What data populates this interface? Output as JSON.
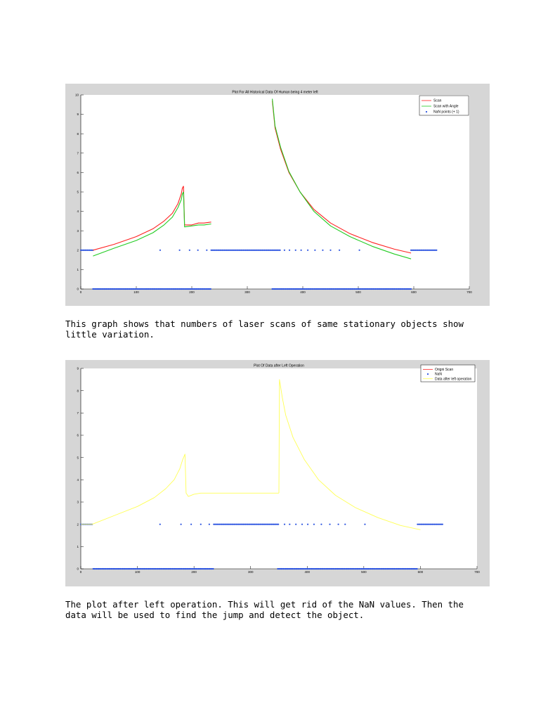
{
  "captions": {
    "first": "This graph shows that numbers of laser scans of same stationary objects show little variation.",
    "second": "The plot after left operation. This will get rid of the NaN values. Then the data will be used to find the jump and detect the object."
  },
  "chart_data": [
    {
      "type": "line",
      "title": "Plot For All Historical Data Of Human being 4 meter left",
      "xlabel": "",
      "ylabel": "",
      "xlim": [
        0,
        700
      ],
      "ylim": [
        0,
        10
      ],
      "xticks": [
        0,
        100,
        200,
        300,
        400,
        500,
        600,
        700
      ],
      "yticks": [
        0,
        1,
        2,
        3,
        4,
        5,
        6,
        7,
        8,
        9,
        10
      ],
      "grid": false,
      "legend_position": "top-right",
      "series": [
        {
          "name": "Scan",
          "color": "#ff2020",
          "segments": [
            {
              "x": [
                22,
                60,
                100,
                130,
                150,
                165,
                175,
                181,
                183,
                185
              ],
              "y": [
                2.0,
                2.3,
                2.7,
                3.1,
                3.5,
                3.9,
                4.4,
                4.9,
                5.2,
                5.3
              ]
            },
            {
              "x": [
                185,
                187,
                200,
                212,
                222,
                235
              ],
              "y": [
                5.3,
                3.3,
                3.3,
                3.4,
                3.4,
                3.45
              ]
            },
            {
              "x": [
                345,
                350,
                360,
                375,
                395,
                420,
                450,
                485,
                525,
                565,
                595
              ],
              "y": [
                9.7,
                8.3,
                7.2,
                6.0,
                5.0,
                4.1,
                3.4,
                2.85,
                2.4,
                2.05,
                1.85
              ]
            }
          ]
        },
        {
          "name": "Scan with Angle",
          "color": "#22cc22",
          "segments": [
            {
              "x": [
                22,
                60,
                100,
                130,
                150,
                165,
                175,
                181,
                183,
                185
              ],
              "y": [
                1.7,
                2.1,
                2.5,
                2.9,
                3.3,
                3.7,
                4.2,
                4.6,
                4.9,
                5.0
              ]
            },
            {
              "x": [
                185,
                187,
                200,
                212,
                222,
                235
              ],
              "y": [
                5.0,
                3.2,
                3.25,
                3.3,
                3.3,
                3.35
              ]
            },
            {
              "x": [
                345,
                350,
                360,
                375,
                395,
                420,
                450,
                485,
                525,
                565,
                595
              ],
              "y": [
                9.8,
                8.4,
                7.3,
                6.05,
                5.0,
                4.0,
                3.25,
                2.7,
                2.2,
                1.8,
                1.55
              ]
            }
          ]
        }
      ],
      "nan_points": {
        "name": "NaN points (+ 1)",
        "color": "#2a52e0",
        "segments_y0": [
          [
            22,
            235
          ],
          [
            345,
            595
          ]
        ],
        "segments_y2": [
          [
            0,
            22
          ],
          [
            235,
            360
          ],
          [
            595,
            642
          ]
        ],
        "isolated_y2": [
          143,
          178,
          196,
          211,
          227,
          367,
          376,
          387,
          397,
          409,
          422,
          436,
          450,
          466,
          502
        ]
      }
    },
    {
      "type": "line",
      "title": "Plot Of Data after Left Operation",
      "xlabel": "",
      "ylabel": "",
      "xlim": [
        0,
        700
      ],
      "ylim": [
        0,
        9
      ],
      "xticks": [
        0,
        100,
        200,
        300,
        400,
        500,
        600,
        700
      ],
      "yticks": [
        0,
        1,
        2,
        3,
        4,
        5,
        6,
        7,
        8,
        9
      ],
      "grid": false,
      "legend_position": "top-right",
      "legend": [
        "Origni Scan",
        "NaN",
        "Data after left operation"
      ],
      "series": [
        {
          "name": "Data after left operation",
          "color": "#ffff55",
          "segments": [
            {
              "x": [
                0,
                20,
                60,
                100,
                130,
                150,
                165,
                175,
                180,
                184,
                186,
                190,
                200,
                212,
                230,
                250,
                280,
                320,
                350
              ],
              "y": [
                2.0,
                2.0,
                2.4,
                2.8,
                3.2,
                3.6,
                4.0,
                4.5,
                4.9,
                5.15,
                3.4,
                3.25,
                3.35,
                3.4,
                3.4,
                3.4,
                3.4,
                3.4,
                3.4
              ]
            },
            {
              "x": [
                350,
                351,
                356,
                362,
                375,
                395,
                420,
                450,
                485,
                525,
                565,
                595,
                600
              ],
              "y": [
                3.4,
                8.5,
                7.7,
                6.9,
                5.9,
                4.9,
                4.0,
                3.3,
                2.75,
                2.3,
                1.95,
                1.78,
                1.76
              ]
            }
          ]
        }
      ],
      "nan_points": {
        "name": "NaN",
        "color": "#2a52e0",
        "segments_y0": [
          [
            22,
            235
          ],
          [
            348,
            595
          ]
        ],
        "segments_y2": [
          [
            0,
            20
          ],
          [
            235,
            350
          ],
          [
            595,
            640
          ]
        ],
        "isolated_y2": [
          140,
          177,
          195,
          212,
          227,
          360,
          369,
          380,
          391,
          401,
          412,
          425,
          440,
          455,
          467,
          502
        ]
      }
    }
  ]
}
